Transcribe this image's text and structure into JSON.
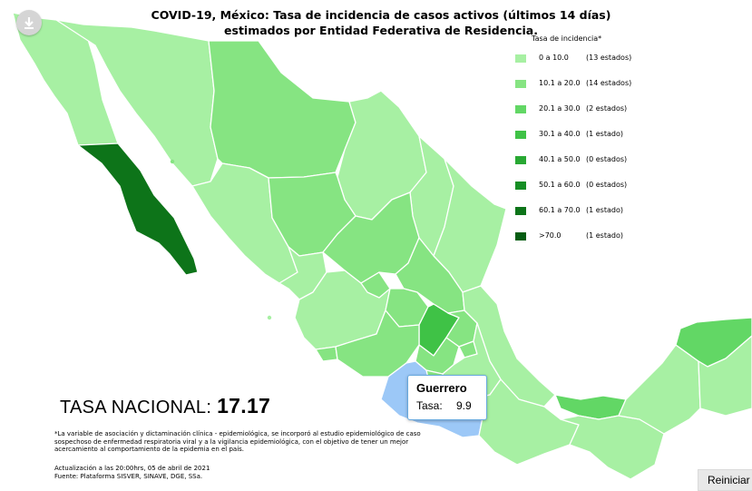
{
  "title_line1": "COVID-19, México: Tasa de incidencia de casos activos (últimos 14 días)",
  "title_line2": "estimados por Entidad Federativa de Residencia.",
  "legend": {
    "title": "Tasa de incidencia*",
    "items": [
      {
        "range": "0 a 10.0",
        "count": "(13 estados)",
        "color": "#a7f0a3"
      },
      {
        "range": "10.1 a 20.0",
        "count": "(14 estados)",
        "color": "#86e482"
      },
      {
        "range": "20.1 a 30.0",
        "count": "(2 estados)",
        "color": "#62d765"
      },
      {
        "range": "30.1 a 40.0",
        "count": "(1 estado)",
        "color": "#3fc246"
      },
      {
        "range": "40.1 a 50.0",
        "count": "(0 estados)",
        "color": "#28a833"
      },
      {
        "range": "50.1 a 60.0",
        "count": "(0 estados)",
        "color": "#168e24"
      },
      {
        "range": "60.1 a 70.0",
        "count": "(1 estado)",
        "color": "#0d7419"
      },
      {
        "range": ">70.0",
        "count": "(1 estado)",
        "color": "#055c12"
      }
    ]
  },
  "national": {
    "label": "TASA NACIONAL: ",
    "value": "17.17"
  },
  "note": "*La variable de asociación y dictaminación clínica - epidemiológica, se incorporó al estudio epidemiológico de caso sospechoso de enfermedad respiratoria viral y a la vigilancia epidemiológica, con el objetivo de tener un mejor acercamiento al comportamiento de la epidemia en el país.",
  "update_line": "Actualización a las 20:00hrs, 05 de abril de 2021",
  "source_line": "Fuente: Plataforma SISVER, SINAVE, DGE, SSa.",
  "tooltip": {
    "state": "Guerrero",
    "label": "Tasa:",
    "value": "9.9"
  },
  "reset_label": "Reiniciar",
  "map_colors": {
    "light": "#a7f0a3",
    "mid": "#86e482",
    "highlight": "#9cc8f7",
    "dark": "#0d7419",
    "border": "#ffffff"
  }
}
